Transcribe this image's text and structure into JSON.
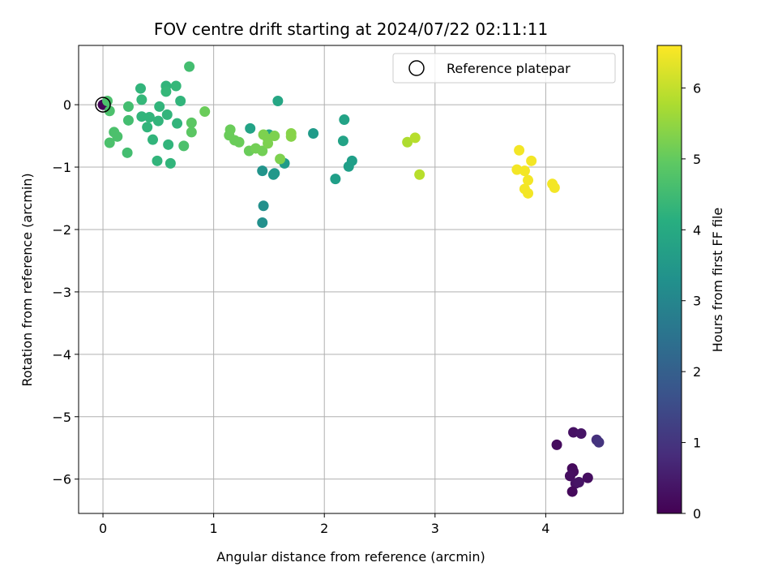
{
  "chart_data": {
    "type": "scatter",
    "title": "FOV centre drift starting at 2024/07/22 02:11:11",
    "xlabel": "Angular distance from reference (arcmin)",
    "ylabel": "Rotation from reference (arcmin)",
    "xlim": [
      -0.22,
      4.7
    ],
    "ylim": [
      -6.55,
      0.95
    ],
    "xticks": [
      0,
      1,
      2,
      3,
      4
    ],
    "yticks": [
      0,
      -1,
      -2,
      -3,
      -4,
      -5,
      -6
    ],
    "grid": true,
    "legend": {
      "position": "top-right",
      "label": "Reference platepar",
      "marker": "open-circle"
    },
    "reference_point": {
      "x": 0,
      "y": 0
    },
    "colorbar": {
      "label": "Hours from first FF file",
      "colormap": "viridis",
      "range": [
        0,
        6.6
      ],
      "ticks": [
        0,
        1,
        2,
        3,
        4,
        5,
        6
      ]
    },
    "points": [
      {
        "x": 0.0,
        "y": 0.0,
        "c": 0.05
      },
      {
        "x": 4.1,
        "y": -5.45,
        "c": 0.2
      },
      {
        "x": 4.25,
        "y": -5.25,
        "c": 0.3
      },
      {
        "x": 4.32,
        "y": -5.27,
        "c": 0.35
      },
      {
        "x": 4.24,
        "y": -5.83,
        "c": 0.15
      },
      {
        "x": 4.25,
        "y": -5.88,
        "c": 0.2
      },
      {
        "x": 4.22,
        "y": -5.95,
        "c": 0.25
      },
      {
        "x": 4.27,
        "y": -6.07,
        "c": 0.3
      },
      {
        "x": 4.3,
        "y": -6.05,
        "c": 0.35
      },
      {
        "x": 4.24,
        "y": -6.2,
        "c": 0.15
      },
      {
        "x": 4.38,
        "y": -5.98,
        "c": 0.25
      },
      {
        "x": 4.46,
        "y": -5.37,
        "c": 0.9
      },
      {
        "x": 4.48,
        "y": -5.41,
        "c": 1.0
      },
      {
        "x": 1.45,
        "y": -1.62,
        "c": 3.3
      },
      {
        "x": 1.44,
        "y": -1.89,
        "c": 3.3
      },
      {
        "x": 1.44,
        "y": -1.06,
        "c": 3.4
      },
      {
        "x": 1.55,
        "y": -1.1,
        "c": 3.5
      },
      {
        "x": 1.54,
        "y": -1.12,
        "c": 3.5
      },
      {
        "x": 1.64,
        "y": -0.94,
        "c": 3.6
      },
      {
        "x": 1.9,
        "y": -0.46,
        "c": 3.6
      },
      {
        "x": 2.1,
        "y": -1.19,
        "c": 3.7
      },
      {
        "x": 2.22,
        "y": -0.99,
        "c": 3.7
      },
      {
        "x": 2.25,
        "y": -0.9,
        "c": 3.7
      },
      {
        "x": 2.17,
        "y": -0.58,
        "c": 3.8
      },
      {
        "x": 2.18,
        "y": -0.24,
        "c": 3.8
      },
      {
        "x": 1.5,
        "y": -0.48,
        "c": 3.8
      },
      {
        "x": 1.33,
        "y": -0.38,
        "c": 3.8
      },
      {
        "x": 1.58,
        "y": 0.06,
        "c": 3.9
      },
      {
        "x": 0.34,
        "y": 0.26,
        "c": 4.3
      },
      {
        "x": 0.57,
        "y": 0.3,
        "c": 4.3
      },
      {
        "x": 0.66,
        "y": 0.3,
        "c": 4.4
      },
      {
        "x": 0.57,
        "y": 0.21,
        "c": 4.4
      },
      {
        "x": 0.35,
        "y": 0.08,
        "c": 4.4
      },
      {
        "x": 0.7,
        "y": 0.06,
        "c": 4.3
      },
      {
        "x": 0.51,
        "y": -0.03,
        "c": 4.3
      },
      {
        "x": 0.58,
        "y": -0.16,
        "c": 4.3
      },
      {
        "x": 0.35,
        "y": -0.19,
        "c": 4.3
      },
      {
        "x": 0.42,
        "y": -0.2,
        "c": 4.3
      },
      {
        "x": 0.5,
        "y": -0.26,
        "c": 4.3
      },
      {
        "x": 0.4,
        "y": -0.36,
        "c": 4.3
      },
      {
        "x": 0.45,
        "y": -0.56,
        "c": 4.3
      },
      {
        "x": 0.59,
        "y": -0.64,
        "c": 4.3
      },
      {
        "x": 0.49,
        "y": -0.9,
        "c": 4.3
      },
      {
        "x": 0.61,
        "y": -0.94,
        "c": 4.3
      },
      {
        "x": 0.67,
        "y": -0.3,
        "c": 4.3
      },
      {
        "x": 0.78,
        "y": 0.61,
        "c": 4.6
      },
      {
        "x": 0.23,
        "y": -0.03,
        "c": 4.6
      },
      {
        "x": 0.23,
        "y": -0.25,
        "c": 4.6
      },
      {
        "x": 0.22,
        "y": -0.77,
        "c": 4.6
      },
      {
        "x": 0.06,
        "y": -0.1,
        "c": 4.7
      },
      {
        "x": 0.04,
        "y": 0.06,
        "c": 4.7
      },
      {
        "x": 0.1,
        "y": -0.44,
        "c": 4.7
      },
      {
        "x": 0.13,
        "y": -0.51,
        "c": 4.7
      },
      {
        "x": 0.06,
        "y": -0.61,
        "c": 4.7
      },
      {
        "x": 0.73,
        "y": -0.66,
        "c": 4.7
      },
      {
        "x": 0.8,
        "y": -0.29,
        "c": 4.9
      },
      {
        "x": 0.8,
        "y": -0.44,
        "c": 4.9
      },
      {
        "x": 0.92,
        "y": -0.11,
        "c": 5.1
      },
      {
        "x": 1.14,
        "y": -0.49,
        "c": 5.1
      },
      {
        "x": 1.15,
        "y": -0.4,
        "c": 5.1
      },
      {
        "x": 1.19,
        "y": -0.57,
        "c": 5.1
      },
      {
        "x": 1.23,
        "y": -0.6,
        "c": 5.1
      },
      {
        "x": 1.32,
        "y": -0.74,
        "c": 5.1
      },
      {
        "x": 1.38,
        "y": -0.7,
        "c": 5.2
      },
      {
        "x": 1.44,
        "y": -0.74,
        "c": 5.2
      },
      {
        "x": 1.45,
        "y": -0.48,
        "c": 5.3
      },
      {
        "x": 1.49,
        "y": -0.55,
        "c": 5.3
      },
      {
        "x": 1.49,
        "y": -0.62,
        "c": 5.3
      },
      {
        "x": 1.55,
        "y": -0.5,
        "c": 5.3
      },
      {
        "x": 1.6,
        "y": -0.87,
        "c": 5.3
      },
      {
        "x": 1.7,
        "y": -0.46,
        "c": 5.4
      },
      {
        "x": 1.7,
        "y": -0.51,
        "c": 5.4
      },
      {
        "x": 2.75,
        "y": -0.6,
        "c": 5.8
      },
      {
        "x": 2.82,
        "y": -0.53,
        "c": 5.9
      },
      {
        "x": 2.86,
        "y": -1.12,
        "c": 5.9
      },
      {
        "x": 3.76,
        "y": -0.73,
        "c": 6.5
      },
      {
        "x": 3.87,
        "y": -0.9,
        "c": 6.5
      },
      {
        "x": 3.74,
        "y": -1.04,
        "c": 6.5
      },
      {
        "x": 3.81,
        "y": -1.06,
        "c": 6.5
      },
      {
        "x": 3.84,
        "y": -1.21,
        "c": 6.5
      },
      {
        "x": 3.81,
        "y": -1.35,
        "c": 6.5
      },
      {
        "x": 3.84,
        "y": -1.42,
        "c": 6.5
      },
      {
        "x": 4.06,
        "y": -1.27,
        "c": 6.5
      },
      {
        "x": 4.08,
        "y": -1.33,
        "c": 6.5
      }
    ]
  }
}
